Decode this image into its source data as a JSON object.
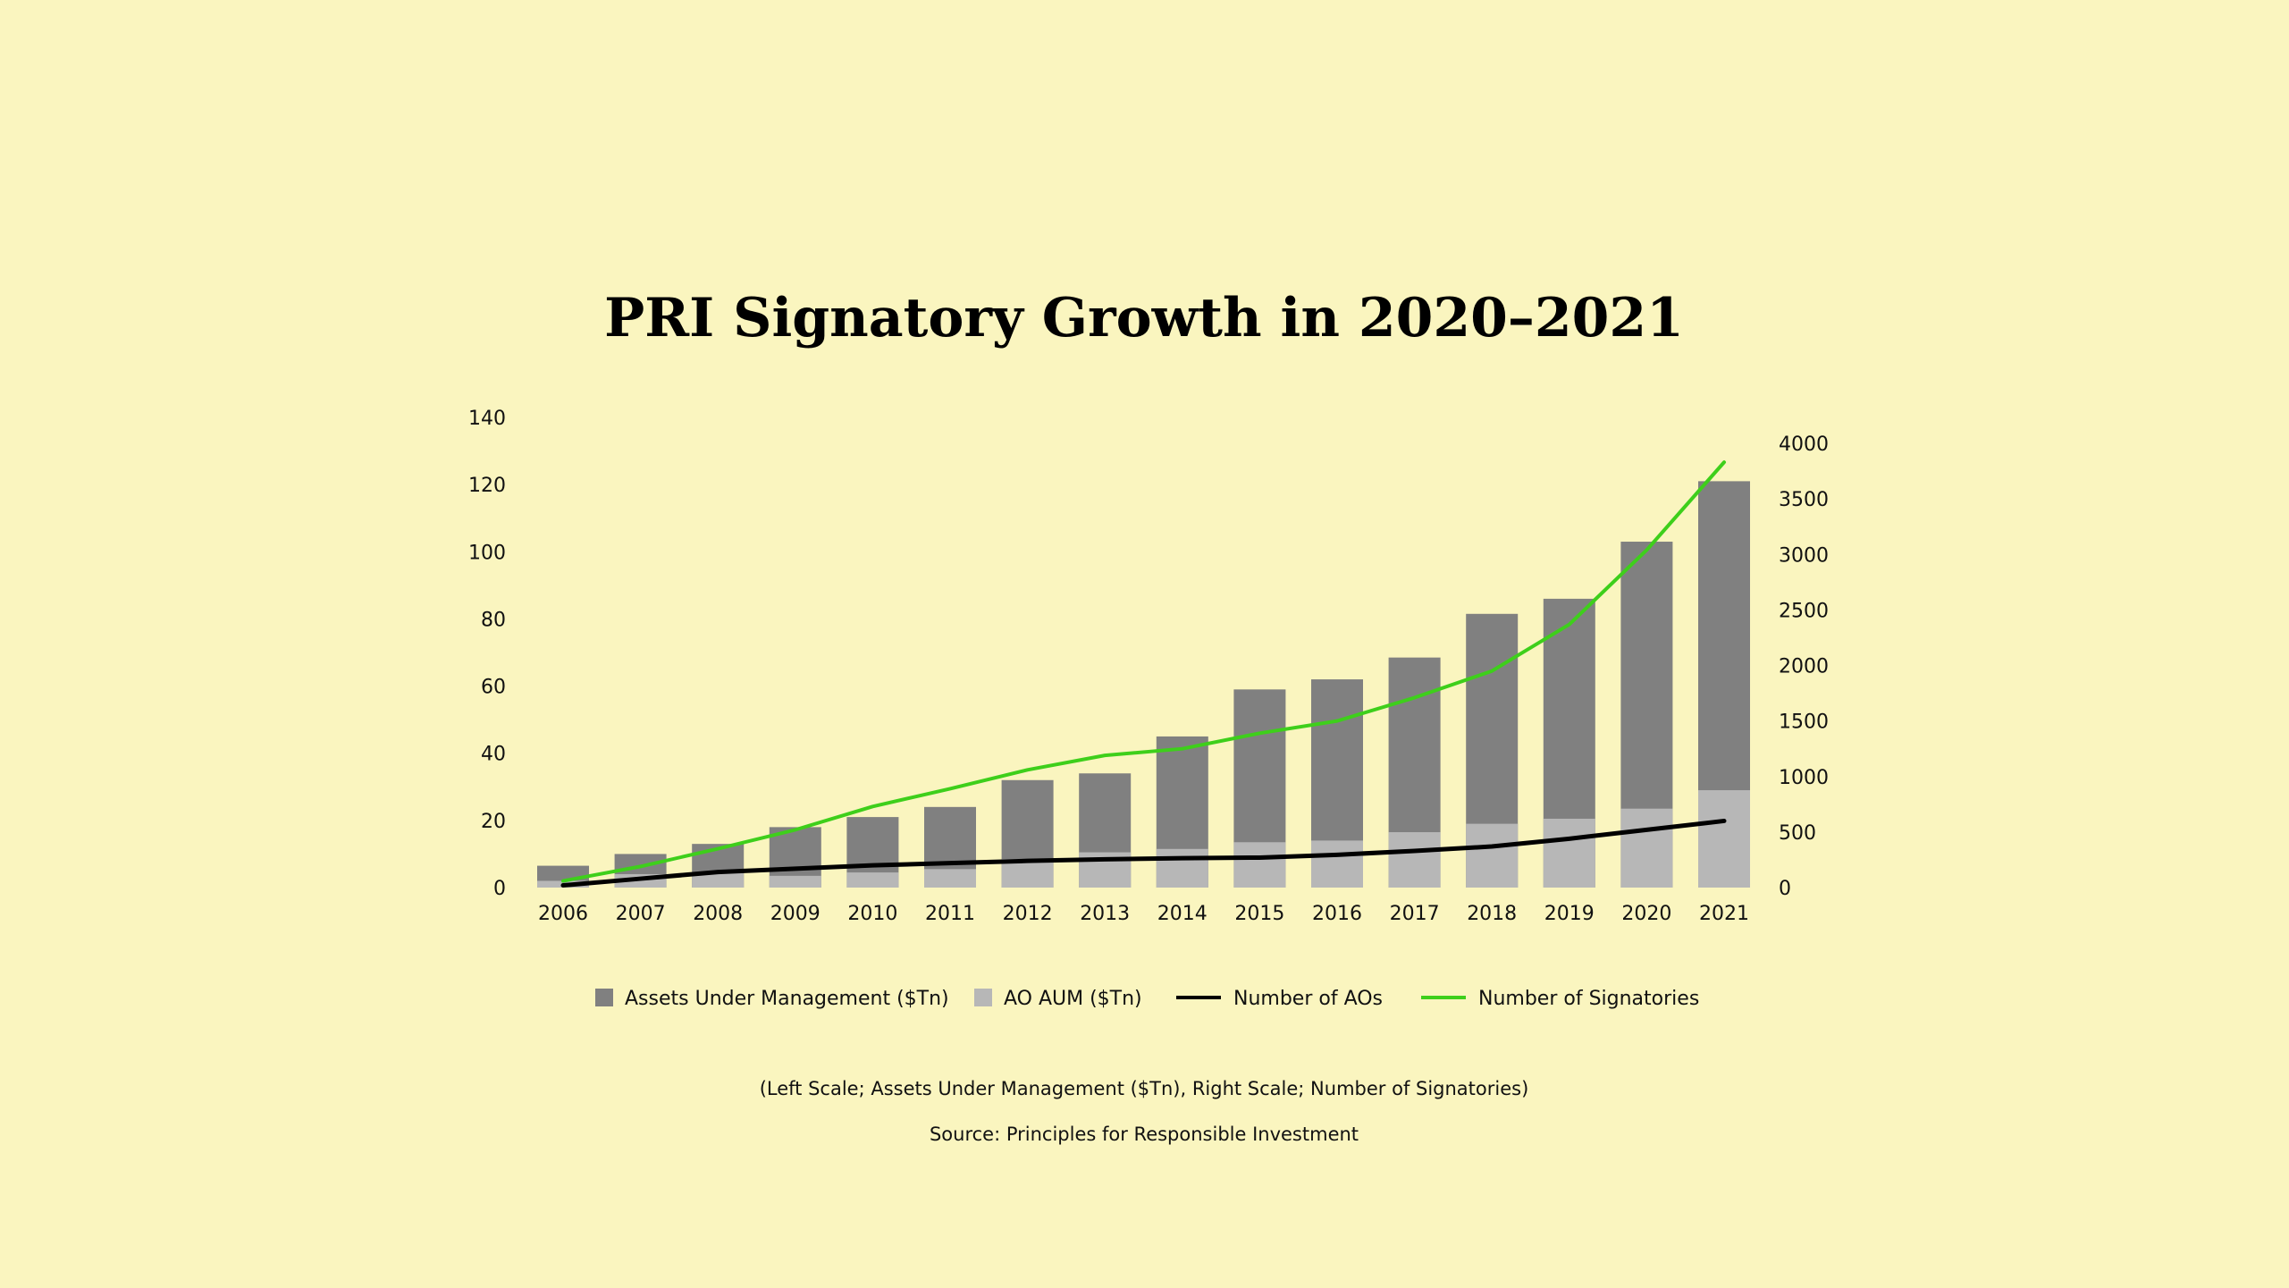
{
  "chart_data": {
    "type": "bar",
    "title": "PRI Signatory Growth in 2020–2021",
    "categories": [
      "2006",
      "2007",
      "2008",
      "2009",
      "2010",
      "2011",
      "2012",
      "2013",
      "2014",
      "2015",
      "2016",
      "2017",
      "2018",
      "2019",
      "2020",
      "2021"
    ],
    "series": [
      {
        "name": "Assets Under Management ($Tn)",
        "kind": "bar",
        "axis": "left",
        "color": "#808080",
        "values": [
          6.5,
          10,
          13,
          18,
          21,
          24,
          32,
          34,
          45,
          59,
          62,
          68.5,
          81.5,
          86,
          103,
          121
        ]
      },
      {
        "name": "AO AUM ($Tn)",
        "kind": "bar",
        "axis": "left",
        "color": "#b7b7b7",
        "values": [
          2,
          4,
          4.5,
          3.5,
          4.5,
          5.5,
          8.5,
          10.5,
          11.5,
          13.5,
          14,
          16.5,
          19,
          20.5,
          23.5,
          29
        ]
      },
      {
        "name": "Number of AOs",
        "kind": "line",
        "axis": "right",
        "color": "#000000",
        "values": [
          20,
          80,
          140,
          170,
          200,
          220,
          240,
          255,
          265,
          270,
          295,
          330,
          370,
          440,
          520,
          600
        ]
      },
      {
        "name": "Number of Signatories",
        "kind": "line",
        "axis": "right",
        "color": "#3ecf1b",
        "values": [
          60,
          190,
          350,
          520,
          730,
          890,
          1060,
          1190,
          1250,
          1390,
          1500,
          1710,
          1950,
          2370,
          3040,
          3830
        ]
      }
    ],
    "left_axis": {
      "ylim": [
        0,
        140
      ],
      "ticks": [
        "0",
        "20",
        "40",
        "60",
        "80",
        "100",
        "120",
        "140"
      ]
    },
    "right_axis": {
      "ylim": [
        0,
        4000
      ],
      "ticks": [
        "0",
        "500",
        "1000",
        "1500",
        "2000",
        "2500",
        "3000",
        "3500",
        "4000"
      ]
    },
    "legend": [
      "Assets Under Management ($Tn)",
      "AO AUM ($Tn)",
      "Number of AOs",
      "Number of Signatories"
    ],
    "legend_position": "bottom",
    "notes": [
      "(Left Scale; Assets Under Management ($Tn),  Right Scale; Number of Signatories)",
      "Source: Principles for Responsible Investment"
    ],
    "grid": false
  }
}
